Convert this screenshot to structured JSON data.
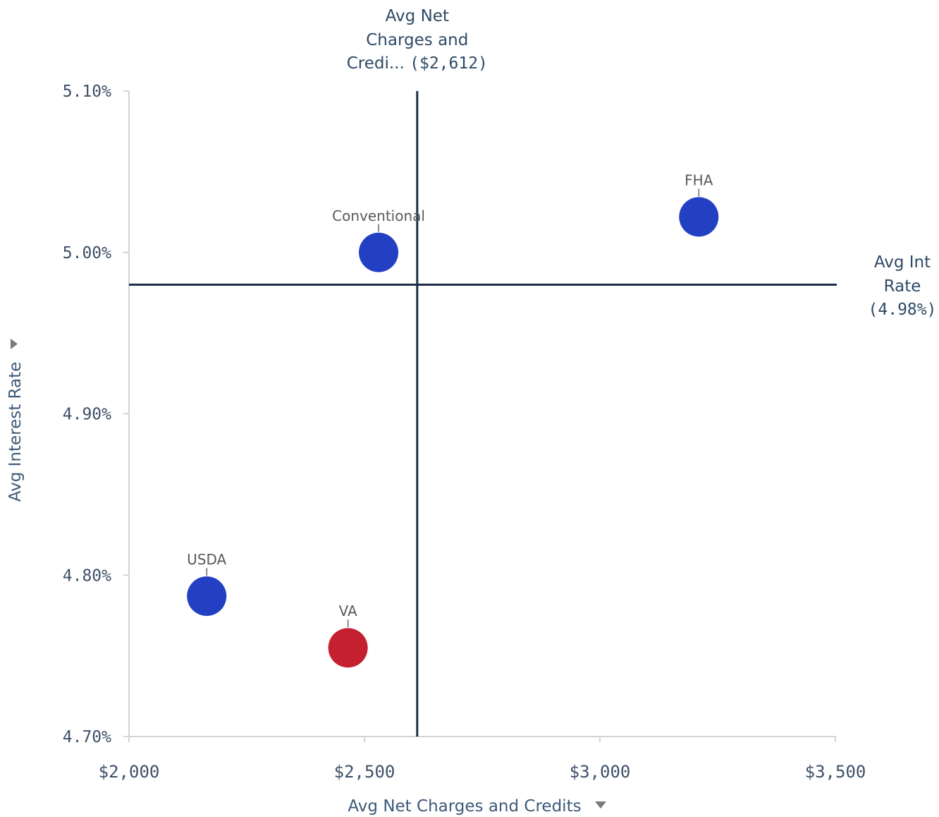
{
  "chart_data": {
    "type": "scatter",
    "xlabel": "Avg Net Charges and Credits",
    "ylabel": "Avg Interest Rate",
    "xlim": [
      2000,
      3500
    ],
    "ylim": [
      4.7,
      5.1
    ],
    "x_ticks": [
      2000,
      2500,
      3000,
      3500
    ],
    "x_tick_labels": [
      "$2,000",
      "$2,500",
      "$3,000",
      "$3,500"
    ],
    "y_ticks": [
      4.7,
      4.8,
      4.9,
      5.0,
      5.1
    ],
    "y_tick_labels": [
      "4.70%",
      "4.80%",
      "4.90%",
      "5.00%",
      "5.10%"
    ],
    "grid": false,
    "points": [
      {
        "label": "Conventional",
        "x": 2530,
        "y": 5.0,
        "color": "#2440c2"
      },
      {
        "label": "FHA",
        "x": 3210,
        "y": 5.022,
        "color": "#2440c2"
      },
      {
        "label": "USDA",
        "x": 2165,
        "y": 4.787,
        "color": "#2440c2"
      },
      {
        "label": "VA",
        "x": 2465,
        "y": 4.755,
        "color": "#c4202f"
      }
    ],
    "reference_lines": [
      {
        "orientation": "vertical",
        "value": 2612,
        "label_lines": [
          "Avg Net",
          "Charges and"
        ],
        "label_tail": "Credi...",
        "value_text": "($2,612)"
      },
      {
        "orientation": "horizontal",
        "value": 4.98,
        "label_lines": [
          "Avg Int",
          "Rate"
        ],
        "value_text": "(4.98%)"
      }
    ],
    "colors": {
      "axis": "#d4d4d4",
      "tick_text": "#3d5069",
      "reference": "#1b2e47"
    }
  },
  "controls": {
    "x_dropdown_icon": "caret-down-icon",
    "y_dropdown_icon": "caret-right-icon"
  }
}
